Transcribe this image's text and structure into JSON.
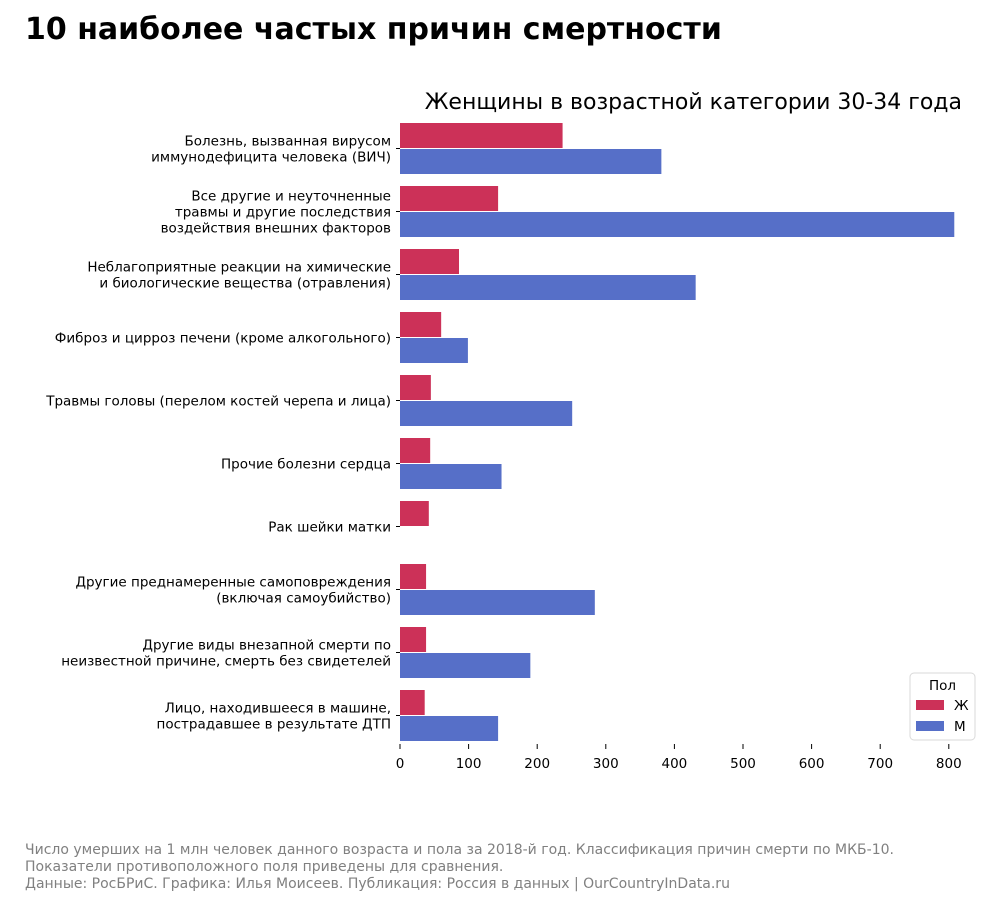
{
  "header": {
    "title": "10 наиболее частых причин смертности"
  },
  "chart_data": {
    "type": "bar",
    "orientation": "horizontal",
    "title": "Женщины в возрастной категории 30-34 года",
    "xlabel": "",
    "ylabel": "",
    "xlim": [
      0,
      820
    ],
    "xticks": [
      0,
      100,
      200,
      300,
      400,
      500,
      600,
      700,
      800
    ],
    "grid": false,
    "categories": [
      [
        "Болезнь, вызванная вирусом",
        "иммунодефицита человека (ВИЧ)"
      ],
      [
        "Все другие и неуточненные",
        "травмы и другие последствия",
        "воздействия внешних факторов"
      ],
      [
        "Неблагоприятные реакции на химические",
        "и биологические вещества (отравления)"
      ],
      [
        "Фиброз и цирроз печени (кроме алкогольного)"
      ],
      [
        "Травмы головы (перелом костей черепа и лица)"
      ],
      [
        "Прочие болезни сердца"
      ],
      [
        "Рак шейки матки"
      ],
      [
        "Другие преднамеренные самоповреждения",
        "(включая самоубийство)"
      ],
      [
        "Другие виды внезапной смерти по",
        "неизвестной причине, смерть без свидетелей"
      ],
      [
        "Лицо, находившееся в машине,",
        "пострадавшее в результате ДТП"
      ]
    ],
    "series": [
      {
        "name": "Ж",
        "color": "#cc3158",
        "values": [
          237,
          143,
          86,
          60,
          45,
          44,
          42,
          38,
          38,
          36
        ]
      },
      {
        "name": "М",
        "color": "#566fc8",
        "values": [
          381,
          808,
          431,
          99,
          251,
          148,
          null,
          284,
          190,
          143
        ]
      }
    ],
    "legend": {
      "title": "Пол",
      "position": "bottom-right"
    }
  },
  "footnote": {
    "lines": [
      "Число умерших на 1 млн человек данного возраста и пола за 2018-й год. Классификация причин смерти по МКБ-10.",
      "Показатели противоположного поля приведены для сравнения.",
      "Данные: РосБРиС. Графика: Илья Моисеев. Публикация: Россия в данных | OurCountryInData.ru"
    ]
  }
}
